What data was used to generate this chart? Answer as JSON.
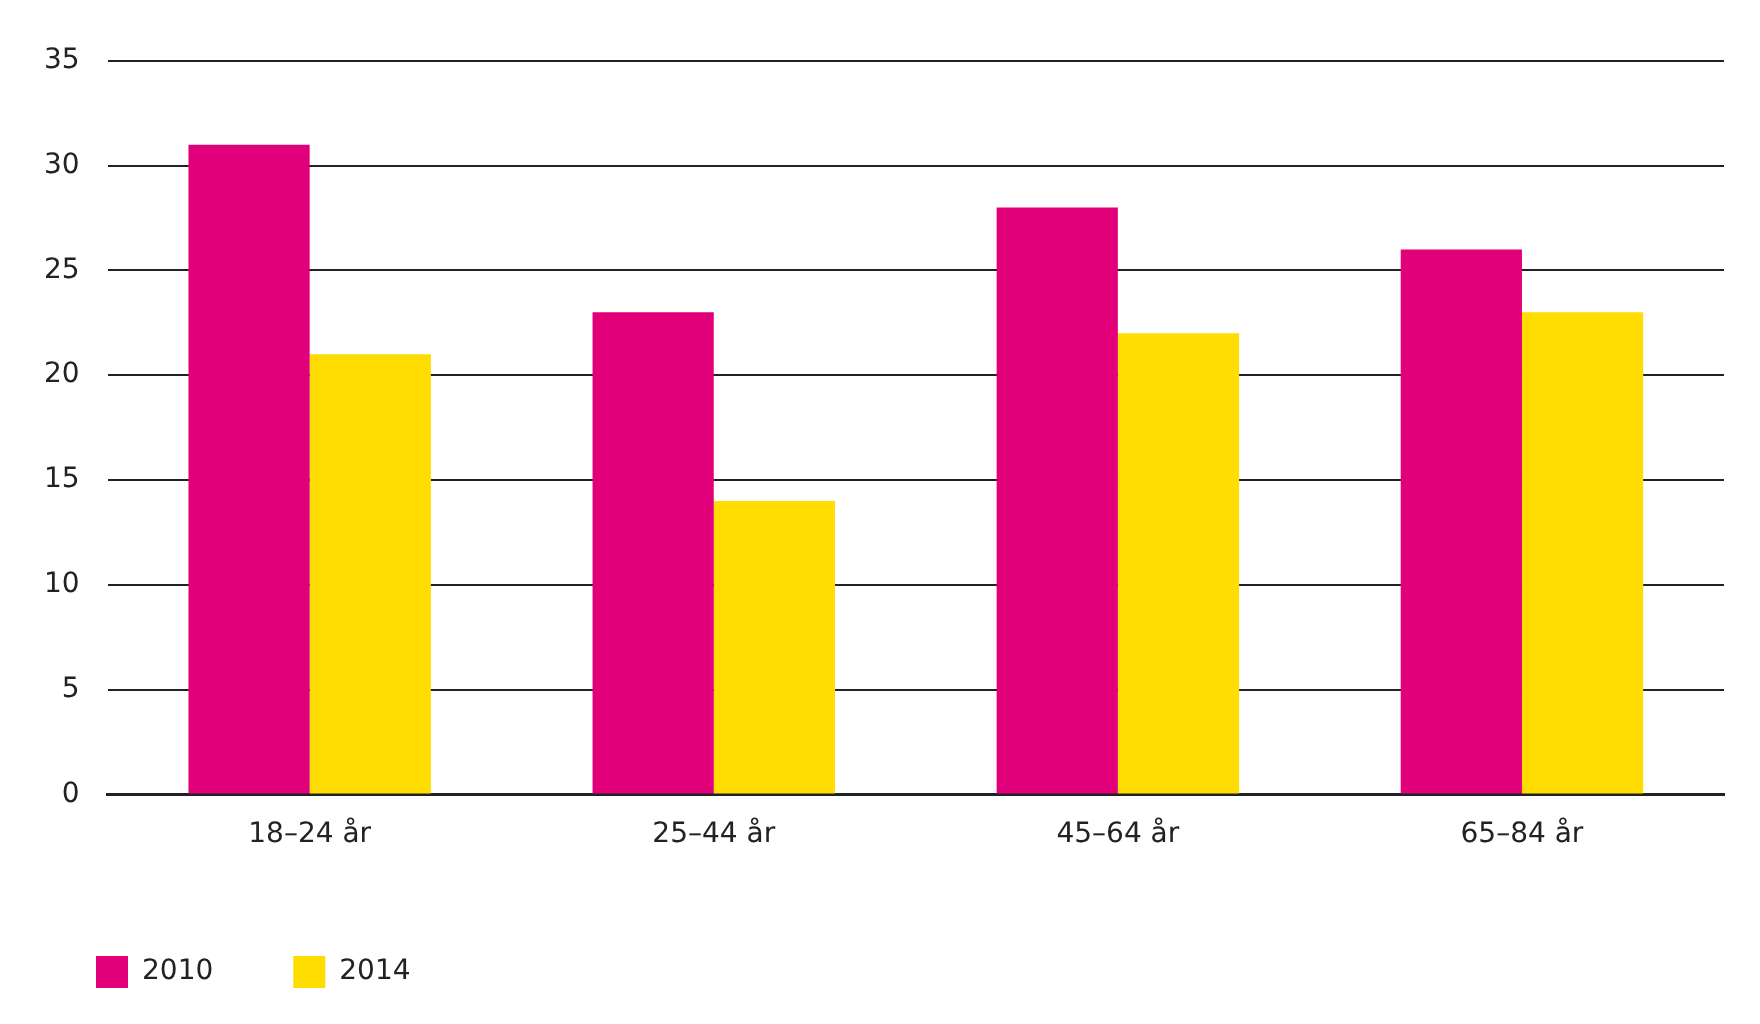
{
  "chart_data": {
    "type": "bar",
    "categories": [
      "18–24 år",
      "25–44 år",
      "45–64 år",
      "65–84 år"
    ],
    "series": [
      {
        "name": "2010",
        "color": "#e2007a",
        "values": [
          31,
          23,
          28,
          26
        ]
      },
      {
        "name": "2014",
        "color": "#ffdd00",
        "values": [
          21,
          14,
          22,
          23
        ]
      }
    ],
    "ylim": [
      0,
      35
    ],
    "yticks": [
      0,
      5,
      10,
      15,
      20,
      25,
      30,
      35
    ],
    "grid": "y",
    "legend": "bottom left"
  }
}
